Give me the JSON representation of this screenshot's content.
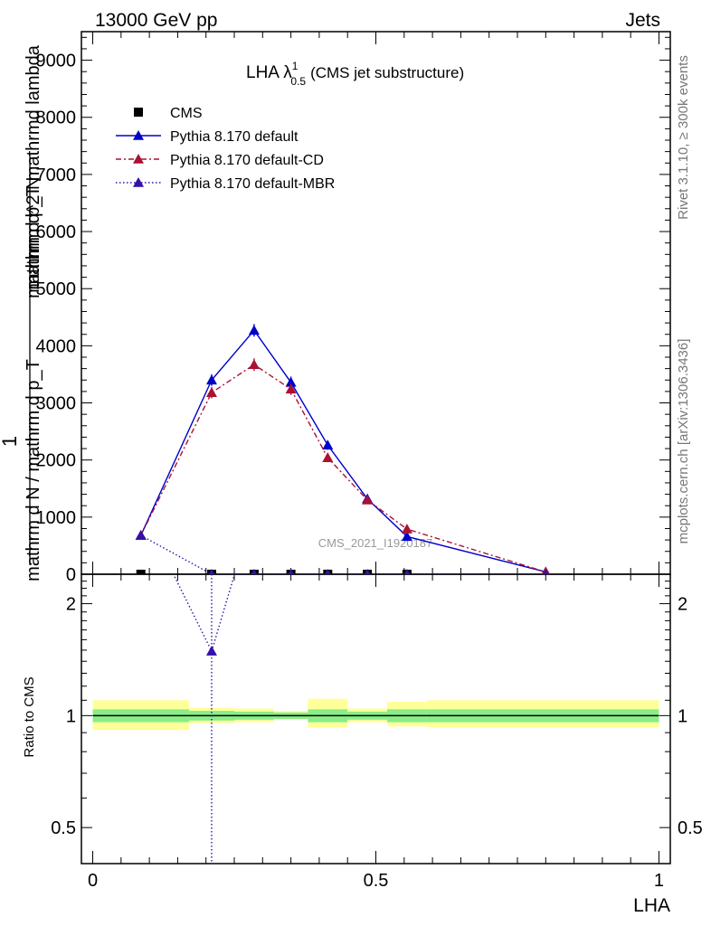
{
  "header": {
    "left": "13000 GeV pp",
    "right": "Jets"
  },
  "side_labels": {
    "rivet": "Rivet 3.1.10, ≥ 300k events",
    "mcplots": "mcplots.cern.ch [arXiv:1306.3436]"
  },
  "watermark": "CMS_2021_I1920187",
  "chart_data": [
    {
      "type": "line",
      "panel": "main",
      "title": "LHA λ",
      "title_sup": "1",
      "title_sub": "0.5",
      "title_suffix": "(CMS jet substructure)",
      "ylabel_numerator": "1",
      "ylabel_denominator": "mathrm d N / mathrm d p_T",
      "ylabel_sub": "T",
      "ylabel_line2": "mathrm d p_T mathrmd lambda",
      "ylabel_line1": "mathrm d^2 N",
      "ylim": [
        0,
        9500
      ],
      "yticks": [
        0,
        1000,
        2000,
        3000,
        4000,
        5000,
        6000,
        7000,
        8000,
        9000
      ],
      "ytick_labels": [
        "0",
        "1000",
        "2000",
        "3000",
        "4000",
        "5000",
        "6000",
        "7000",
        "8000",
        "9000"
      ],
      "xlim": [
        -0.02,
        1.02
      ],
      "legend": [
        "CMS",
        "Pythia 8.170 default",
        "Pythia 8.170 default-CD",
        "Pythia 8.170 default-MBR"
      ],
      "legend_position": "top-left",
      "series": [
        {
          "name": "CMS",
          "color": "#000000",
          "marker": "square",
          "x": [
            0.085,
            0.21,
            0.285,
            0.35,
            0.415,
            0.485,
            0.555
          ],
          "y": [
            0,
            0,
            0,
            0,
            0,
            0,
            0
          ]
        },
        {
          "name": "Pythia 8.170 default",
          "color": "#0000cc",
          "marker": "triangle",
          "line": "solid",
          "x": [
            0.085,
            0.21,
            0.285,
            0.35,
            0.415,
            0.485,
            0.555,
            0.8
          ],
          "y": [
            680,
            3400,
            4270,
            3360,
            2260,
            1320,
            660,
            40
          ],
          "err": [
            40,
            100,
            110,
            100,
            80,
            60,
            40,
            10
          ]
        },
        {
          "name": "Pythia 8.170 default-CD",
          "color": "#aa1133",
          "marker": "triangle",
          "line": "dashdot",
          "x": [
            0.085,
            0.21,
            0.285,
            0.35,
            0.415,
            0.485,
            0.555,
            0.8
          ],
          "y": [
            680,
            3180,
            3670,
            3240,
            2040,
            1300,
            790,
            40
          ],
          "err": [
            40,
            100,
            110,
            100,
            80,
            60,
            40,
            10
          ]
        },
        {
          "name": "Pythia 8.170 default-MBR",
          "color": "#3311aa",
          "marker": "triangle",
          "line": "dotted",
          "x": [
            0.085,
            0.21,
            0.285,
            0.35,
            0.415,
            0.485,
            0.555,
            0.8
          ],
          "y": [
            680,
            0,
            0,
            0,
            0,
            0,
            0,
            0
          ]
        }
      ]
    },
    {
      "type": "line",
      "panel": "ratio",
      "ylabel": "Ratio to CMS",
      "xlabel": "LHA",
      "yscale": "log",
      "ylim": [
        0.4,
        2.4
      ],
      "yticks": [
        0.5,
        1,
        2
      ],
      "ytick_labels": [
        "0.5",
        "1",
        "2"
      ],
      "xlim": [
        -0.02,
        1.02
      ],
      "xticks": [
        0,
        0.5,
        1
      ],
      "xtick_labels": [
        "0",
        "0.5",
        "1"
      ],
      "bands": [
        {
          "x0": 0.0,
          "x1": 0.17,
          "stat": [
            0.96,
            1.04
          ],
          "total": [
            0.915,
            1.1
          ]
        },
        {
          "x0": 0.17,
          "x1": 0.25,
          "stat": [
            0.97,
            1.03
          ],
          "total": [
            0.955,
            1.05
          ]
        },
        {
          "x0": 0.25,
          "x1": 0.32,
          "stat": [
            0.975,
            1.025
          ],
          "total": [
            0.96,
            1.045
          ]
        },
        {
          "x0": 0.32,
          "x1": 0.38,
          "stat": [
            0.98,
            1.02
          ],
          "total": [
            0.975,
            1.03
          ]
        },
        {
          "x0": 0.38,
          "x1": 0.45,
          "stat": [
            0.96,
            1.04
          ],
          "total": [
            0.93,
            1.11
          ]
        },
        {
          "x0": 0.45,
          "x1": 0.52,
          "stat": [
            0.975,
            1.025
          ],
          "total": [
            0.96,
            1.045
          ]
        },
        {
          "x0": 0.52,
          "x1": 0.59,
          "stat": [
            0.96,
            1.04
          ],
          "total": [
            0.935,
            1.09
          ]
        },
        {
          "x0": 0.59,
          "x1": 1.0,
          "stat": [
            0.96,
            1.04
          ],
          "total": [
            0.93,
            1.1
          ]
        }
      ],
      "series": [
        {
          "name": "Pythia 8.170 default-MBR",
          "color": "#3311aa",
          "marker": "triangle",
          "line": "dotted",
          "x": [
            0.085,
            0.21,
            0.285
          ],
          "y": [
            3.6,
            1.49,
            3.6
          ]
        }
      ]
    }
  ]
}
